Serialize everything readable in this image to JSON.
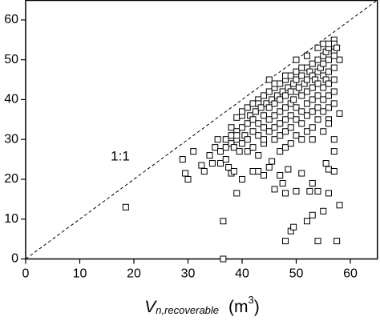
{
  "chart_data": {
    "type": "scatter",
    "xlabel": {
      "symbol": "V",
      "subscript": "n,recoverable",
      "unit": "(m",
      "superscript": "3",
      "unit_end": ")"
    },
    "annotation": "1:1",
    "reference_line": "dashed",
    "marker": "square",
    "color": "#000000",
    "xlim": [
      0,
      65
    ],
    "ylim": [
      0,
      65
    ],
    "xticks": [
      0,
      10,
      20,
      30,
      40,
      50,
      60
    ],
    "yticks": [
      0,
      10,
      20,
      30,
      40,
      50,
      60
    ],
    "x": [
      18.5,
      29,
      29.5,
      30,
      31,
      32.5,
      33,
      34,
      34.5,
      35,
      35.5,
      36,
      36.5,
      36.5,
      37,
      37.5,
      38,
      38.5,
      39,
      38,
      39,
      40,
      42,
      43,
      44,
      45,
      45.5,
      46,
      47,
      47.5,
      48,
      48.5,
      48,
      49,
      49.5,
      50,
      51,
      52,
      52.5,
      53,
      53,
      54,
      54,
      55,
      55.5,
      56,
      56,
      57,
      58,
      57.5,
      58,
      57,
      58,
      56,
      57,
      57,
      57,
      36,
      37,
      37,
      38,
      38,
      38.5,
      39,
      39,
      39,
      39.5,
      40,
      40,
      40,
      40,
      40.5,
      41,
      41,
      41,
      41,
      41.5,
      42,
      42,
      42,
      42,
      42.5,
      43,
      43,
      43,
      43,
      43,
      43.5,
      44,
      44,
      44,
      44,
      44,
      44.5,
      45,
      45,
      45,
      45,
      45,
      45.5,
      46,
      46,
      46,
      46,
      46,
      46,
      46.5,
      47,
      47,
      47,
      47,
      47,
      47,
      47.5,
      48,
      48,
      48,
      48,
      48,
      48,
      48,
      48.5,
      49,
      49,
      49,
      49,
      49,
      49,
      49.5,
      49.5,
      50,
      50,
      50,
      50,
      50,
      50,
      50,
      50.5,
      51,
      51,
      51,
      51,
      51,
      51,
      51.5,
      52,
      52,
      52,
      52,
      52,
      52,
      52,
      52.5,
      53,
      53,
      53,
      53,
      53,
      53,
      53,
      53.5,
      54,
      54,
      54,
      54,
      54,
      54,
      54,
      54.5,
      55,
      55,
      55,
      55,
      55,
      55,
      55,
      55,
      55.5,
      55.5,
      56,
      56,
      56,
      56,
      56,
      56,
      56,
      56,
      57,
      57,
      57,
      57,
      57,
      57,
      57.5
    ],
    "values": [
      13,
      25,
      21.5,
      20,
      27,
      23.5,
      22,
      26,
      24,
      28,
      30,
      24,
      9.5,
      0,
      25,
      23,
      21.5,
      22,
      16.5,
      33,
      35.5,
      20,
      22,
      22,
      21,
      23,
      24.5,
      17.5,
      21,
      19,
      16.5,
      22.5,
      4.5,
      7,
      8,
      17,
      21.5,
      9.5,
      17,
      11,
      19,
      4.5,
      17,
      12,
      24,
      22.5,
      16.5,
      22,
      13.5,
      4.5,
      36.5,
      27,
      50,
      35,
      55,
      54,
      52,
      27,
      28,
      30,
      31,
      29,
      28,
      32,
      30,
      31,
      27,
      33,
      36,
      29,
      37,
      31,
      34,
      38,
      30,
      27,
      36,
      35,
      39,
      32,
      28,
      37,
      40,
      34,
      31,
      26,
      39,
      38,
      41,
      36,
      33,
      29,
      30,
      39,
      42,
      38,
      35,
      32,
      45,
      40,
      43,
      39,
      36,
      33,
      30,
      44,
      41,
      44,
      40,
      37,
      34,
      31,
      27,
      42,
      45,
      41,
      38,
      35,
      32,
      28,
      46,
      43,
      46,
      42,
      39,
      36,
      33,
      29,
      44,
      40,
      47,
      45,
      42,
      38,
      35,
      31,
      50,
      43,
      46,
      41,
      37,
      34,
      30,
      48,
      44,
      48,
      45,
      42,
      39,
      36,
      32,
      51,
      47,
      49,
      46,
      43,
      40,
      37,
      33,
      30,
      45,
      50,
      47,
      44,
      41,
      38,
      35,
      53,
      48,
      51,
      49,
      46,
      43,
      40,
      37,
      54,
      32,
      52,
      45,
      53,
      50,
      47,
      44,
      41,
      38,
      54,
      34,
      51,
      48,
      45,
      42,
      39,
      30,
      53
    ]
  }
}
